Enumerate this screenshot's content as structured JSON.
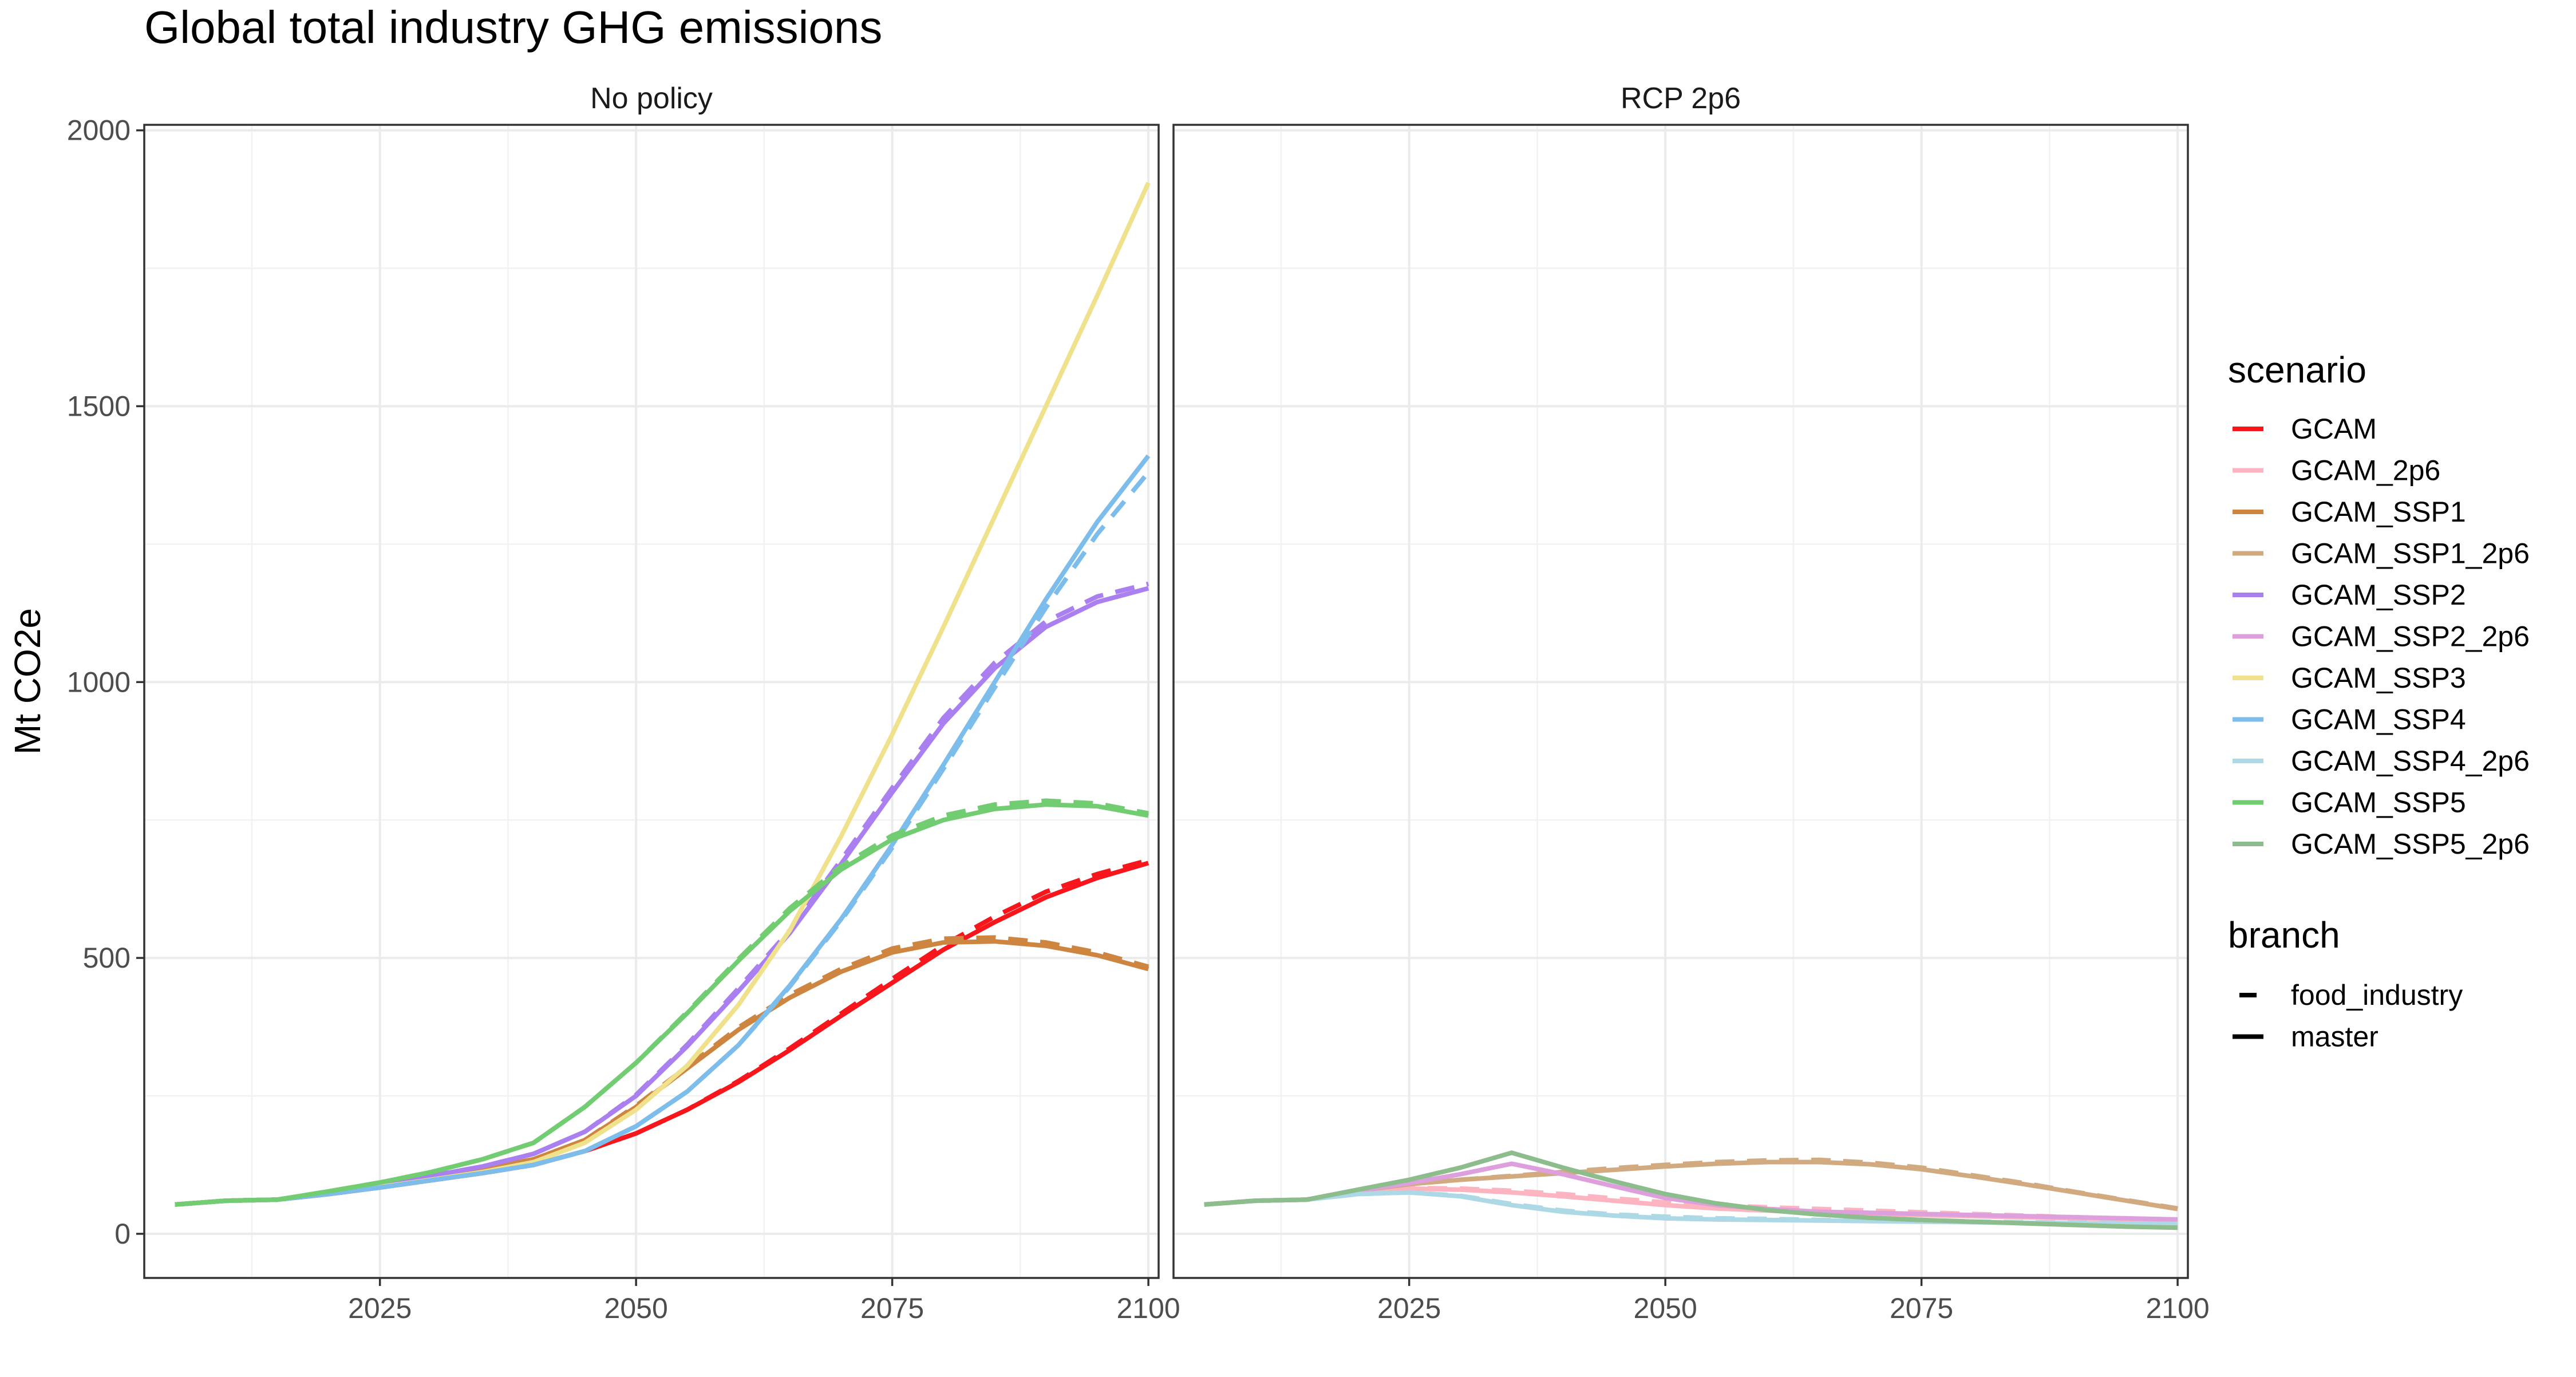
{
  "chart_data": {
    "type": "line",
    "title": "Global total industry GHG emissions",
    "ylabel": "Mt CO2e",
    "xlabel": "",
    "facets": [
      "No policy",
      "RCP 2p6"
    ],
    "xlim": [
      2002,
      2101
    ],
    "ylim": [
      -80,
      2010
    ],
    "x_ticks": [
      2025,
      2050,
      2075,
      2100
    ],
    "y_ticks": [
      0,
      500,
      1000,
      1500,
      2000
    ],
    "legend_position": "right",
    "legend_scenario_title": "scenario",
    "legend_branch_title": "branch",
    "branches": [
      {
        "name": "food_industry",
        "dash": "dashed"
      },
      {
        "name": "master",
        "dash": "solid"
      }
    ],
    "scenarios": [
      {
        "name": "GCAM",
        "color": "#F8161C"
      },
      {
        "name": "GCAM_2p6",
        "color": "#FBB4C0"
      },
      {
        "name": "GCAM_SSP1",
        "color": "#CD853F"
      },
      {
        "name": "GCAM_SSP1_2p6",
        "color": "#D2AA80"
      },
      {
        "name": "GCAM_SSP2",
        "color": "#AA80F0"
      },
      {
        "name": "GCAM_SSP2_2p6",
        "color": "#DDA0DD"
      },
      {
        "name": "GCAM_SSP3",
        "color": "#F0E28C"
      },
      {
        "name": "GCAM_SSP4",
        "color": "#7DBDEB"
      },
      {
        "name": "GCAM_SSP4_2p6",
        "color": "#ADD8E6"
      },
      {
        "name": "GCAM_SSP5",
        "color": "#72CD72"
      },
      {
        "name": "GCAM_SSP5_2p6",
        "color": "#8DBC8D"
      }
    ],
    "x": [
      2005,
      2010,
      2015,
      2020,
      2025,
      2030,
      2035,
      2040,
      2045,
      2050,
      2055,
      2060,
      2065,
      2070,
      2075,
      2080,
      2085,
      2090,
      2095,
      2100
    ],
    "series": [
      {
        "facet": "No policy",
        "scenario": "GCAM",
        "branch": "master",
        "values": [
          53,
          60,
          62,
          72,
          84,
          97,
          110,
          125,
          150,
          182,
          225,
          275,
          333,
          395,
          455,
          515,
          565,
          610,
          645,
          672
        ]
      },
      {
        "facet": "No policy",
        "scenario": "GCAM",
        "branch": "food_industry",
        "values": [
          53,
          60,
          62,
          72,
          84,
          97,
          110,
          125,
          150,
          182,
          225,
          277,
          336,
          399,
          462,
          523,
          575,
          620,
          652,
          677
        ]
      },
      {
        "facet": "No policy",
        "scenario": "GCAM_SSP1",
        "branch": "master",
        "values": [
          53,
          60,
          62,
          75,
          88,
          102,
          118,
          135,
          170,
          230,
          300,
          370,
          428,
          475,
          510,
          528,
          530,
          522,
          505,
          480
        ]
      },
      {
        "facet": "No policy",
        "scenario": "GCAM_SSP1",
        "branch": "food_industry",
        "values": [
          53,
          60,
          62,
          75,
          88,
          102,
          118,
          135,
          170,
          232,
          303,
          374,
          433,
          480,
          517,
          535,
          537,
          528,
          510,
          484
        ]
      },
      {
        "facet": "No policy",
        "scenario": "GCAM_SSP2",
        "branch": "master",
        "values": [
          53,
          60,
          62,
          75,
          90,
          105,
          122,
          145,
          185,
          250,
          340,
          440,
          545,
          670,
          800,
          925,
          1025,
          1100,
          1145,
          1170
        ]
      },
      {
        "facet": "No policy",
        "scenario": "GCAM_SSP2",
        "branch": "food_industry",
        "values": [
          53,
          60,
          62,
          75,
          90,
          105,
          122,
          145,
          185,
          252,
          343,
          445,
          550,
          677,
          808,
          935,
          1035,
          1110,
          1155,
          1178
        ]
      },
      {
        "facet": "No policy",
        "scenario": "GCAM_SSP3",
        "branch": "master",
        "values": [
          53,
          60,
          62,
          73,
          85,
          98,
          112,
          130,
          165,
          225,
          305,
          415,
          550,
          720,
          905,
          1100,
          1300,
          1500,
          1700,
          1905
        ]
      },
      {
        "facet": "No policy",
        "scenario": "GCAM_SSP4",
        "branch": "master",
        "values": [
          53,
          60,
          62,
          72,
          84,
          97,
          110,
          125,
          150,
          195,
          258,
          342,
          450,
          570,
          705,
          850,
          1000,
          1150,
          1290,
          1410
        ]
      },
      {
        "facet": "No policy",
        "scenario": "GCAM_SSP4",
        "branch": "food_industry",
        "values": [
          53,
          60,
          62,
          72,
          84,
          97,
          110,
          125,
          150,
          195,
          258,
          342,
          448,
          567,
          700,
          843,
          990,
          1135,
          1268,
          1380
        ]
      },
      {
        "facet": "No policy",
        "scenario": "GCAM_SSP5",
        "branch": "master",
        "values": [
          53,
          60,
          62,
          77,
          93,
          112,
          135,
          165,
          230,
          310,
          400,
          495,
          585,
          660,
          715,
          750,
          770,
          778,
          775,
          758
        ]
      },
      {
        "facet": "No policy",
        "scenario": "GCAM_SSP5",
        "branch": "food_industry",
        "values": [
          53,
          60,
          62,
          77,
          93,
          112,
          135,
          165,
          230,
          310,
          402,
          498,
          590,
          666,
          722,
          758,
          778,
          785,
          780,
          762
        ]
      },
      {
        "facet": "RCP 2p6",
        "scenario": "GCAM_2p6",
        "branch": "master",
        "values": [
          53,
          60,
          62,
          75,
          82,
          80,
          75,
          68,
          60,
          52,
          46,
          42,
          38,
          36,
          34,
          32,
          30,
          28,
          26,
          25
        ]
      },
      {
        "facet": "RCP 2p6",
        "scenario": "GCAM_2p6",
        "branch": "food_industry",
        "values": [
          53,
          60,
          62,
          75,
          83,
          82,
          78,
          72,
          64,
          57,
          52,
          48,
          45,
          42,
          39,
          36,
          33,
          30,
          27,
          25
        ]
      },
      {
        "facet": "RCP 2p6",
        "scenario": "GCAM_SSP1_2p6",
        "branch": "master",
        "values": [
          53,
          60,
          62,
          78,
          90,
          98,
          104,
          110,
          116,
          122,
          127,
          130,
          130,
          126,
          117,
          104,
          90,
          75,
          60,
          45
        ]
      },
      {
        "facet": "RCP 2p6",
        "scenario": "GCAM_SSP1_2p6",
        "branch": "food_industry",
        "values": [
          53,
          60,
          62,
          78,
          90,
          98,
          105,
          112,
          119,
          125,
          130,
          133,
          134,
          129,
          120,
          106,
          92,
          76,
          61,
          46
        ]
      },
      {
        "facet": "RCP 2p6",
        "scenario": "GCAM_SSP2_2p6",
        "branch": "master",
        "values": [
          53,
          60,
          62,
          78,
          92,
          108,
          127,
          108,
          86,
          65,
          52,
          45,
          40,
          38,
          36,
          34,
          32,
          30,
          28,
          26
        ]
      },
      {
        "facet": "RCP 2p6",
        "scenario": "GCAM_SSP4_2p6",
        "branch": "master",
        "values": [
          53,
          60,
          62,
          72,
          75,
          68,
          52,
          40,
          33,
          28,
          26,
          25,
          24,
          23,
          22,
          21,
          20,
          19,
          18,
          17
        ]
      },
      {
        "facet": "RCP 2p6",
        "scenario": "GCAM_SSP4_2p6",
        "branch": "food_industry",
        "values": [
          53,
          60,
          62,
          72,
          75,
          69,
          54,
          42,
          35,
          31,
          28,
          27,
          25,
          24,
          23,
          22,
          21,
          20,
          19,
          18
        ]
      },
      {
        "facet": "RCP 2p6",
        "scenario": "GCAM_SSP5_2p6",
        "branch": "master",
        "values": [
          53,
          60,
          62,
          80,
          98,
          120,
          147,
          120,
          95,
          72,
          55,
          43,
          35,
          29,
          25,
          22,
          19,
          16,
          13,
          11
        ]
      }
    ]
  }
}
